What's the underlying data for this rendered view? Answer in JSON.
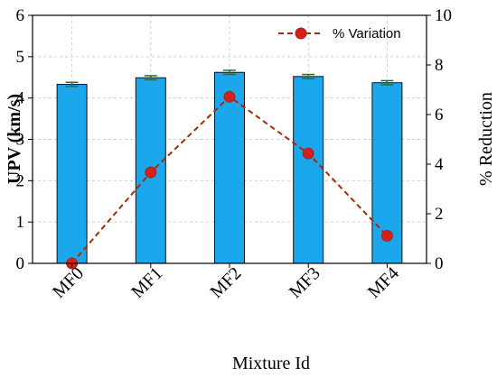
{
  "chart_data": {
    "type": "bar",
    "categories": [
      "MF0",
      "MF1",
      "MF2",
      "MF3",
      "MF4"
    ],
    "xlabel": "Mixture Id",
    "ylabel": "UPV (km/s)",
    "y2label": "% Reduction",
    "ylim": [
      0,
      6
    ],
    "y2lim": [
      0,
      10
    ],
    "yticks": [
      0,
      1,
      2,
      3,
      4,
      5,
      6
    ],
    "y2ticks": [
      0,
      2,
      4,
      6,
      8,
      10
    ],
    "grid": true,
    "legend_position": "top-right",
    "series": [
      {
        "type": "bar",
        "axis": "left",
        "values": [
          4.33,
          4.49,
          4.62,
          4.52,
          4.37
        ],
        "errors": [
          0.05,
          0.05,
          0.05,
          0.05,
          0.05
        ],
        "color": "#1aa7ec"
      },
      {
        "type": "line",
        "axis": "right",
        "name": "% Variation",
        "values": [
          0.0,
          3.67,
          6.72,
          4.43,
          1.11
        ],
        "line_color": "#a52a0a",
        "marker_color": "#d21f1f"
      }
    ]
  }
}
